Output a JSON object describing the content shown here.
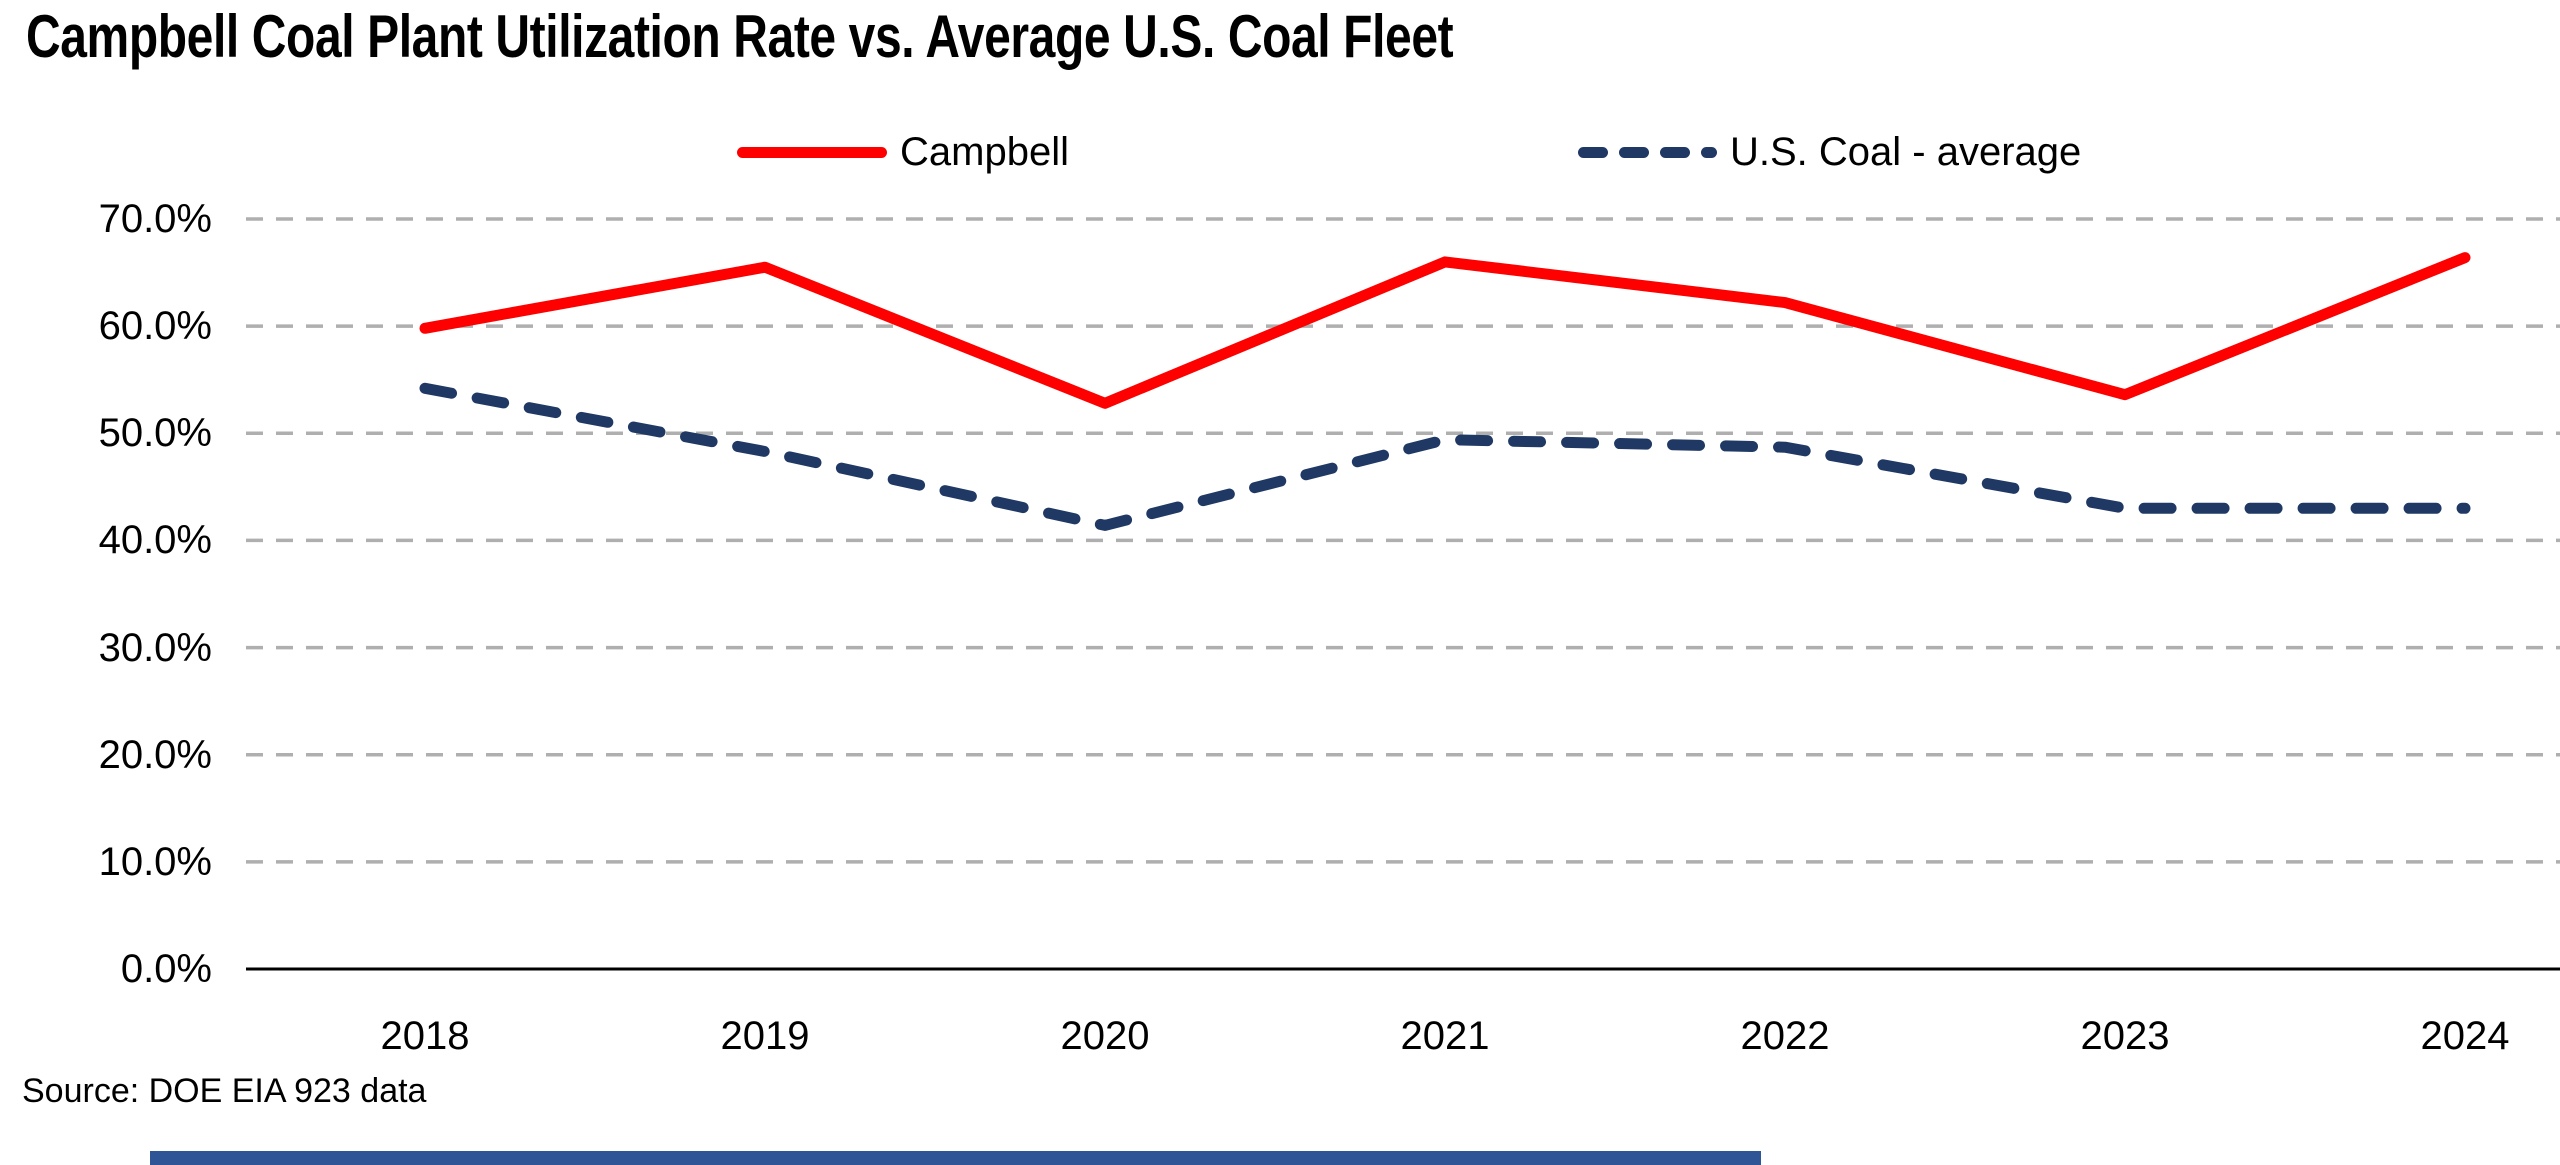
{
  "title": "Campbell Coal Plant Utilization Rate vs. Average U.S. Coal Fleet",
  "source_note": "Source: DOE EIA 923 data",
  "chart_data": {
    "type": "line",
    "title": "Campbell Coal Plant Utilization Rate vs. Average U.S. Coal Fleet",
    "categories": [
      "2018",
      "2019",
      "2020",
      "2021",
      "2022",
      "2023",
      "2024"
    ],
    "series": [
      {
        "name": "Campbell",
        "values": [
          59.8,
          65.5,
          52.8,
          66.0,
          62.2,
          53.6,
          66.4
        ],
        "color": "#FF0000",
        "line_style": "solid"
      },
      {
        "name": "U.S. Coal - average",
        "values": [
          54.2,
          48.3,
          41.4,
          49.4,
          48.7,
          43.0,
          43.0
        ],
        "color": "#1F3864",
        "line_style": "dashed"
      }
    ],
    "unit": "%",
    "ylim": [
      0,
      70
    ],
    "y_tick_labels": [
      "70.0%",
      "60.0%",
      "50.0%",
      "40.0%",
      "30.0%",
      "20.0%",
      "10.0%",
      "0.0%"
    ],
    "y_tick_values": [
      70,
      60,
      50,
      40,
      30,
      20,
      10,
      0
    ],
    "grid": "horizontal dashed",
    "legend_position": "top"
  },
  "colors": {
    "grid_line": "#AFAFAF",
    "axis_line": "#000000",
    "text": "#000000",
    "background": "#FFFFFF",
    "bottom_bar": "#2F5597"
  }
}
